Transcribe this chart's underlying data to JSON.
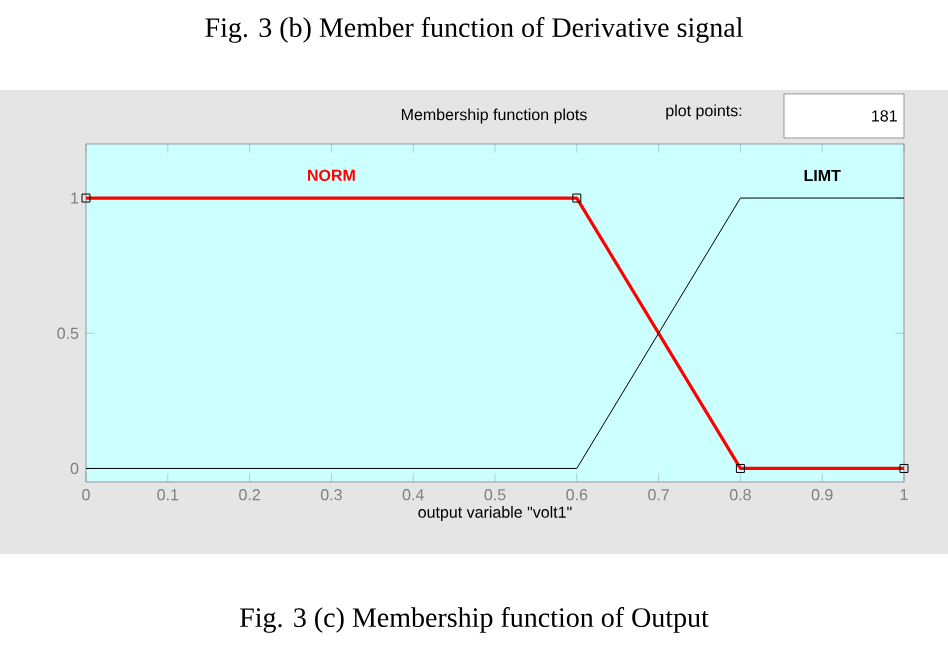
{
  "chart_data": {
    "type": "line",
    "title": "Fig. 3 (c) Membership function of Output",
    "annotations": [
      "Fig. 3 (b) Member function of Derivative signal",
      "Membership function plots",
      "plot points:",
      "181"
    ],
    "xlabel": "output variable \"volt1\"",
    "xlim": [
      0,
      1
    ],
    "ylim": [
      -0.05,
      1.2
    ],
    "xticks": [
      0,
      0.1,
      0.2,
      0.3,
      0.4,
      0.5,
      0.6,
      0.7,
      0.8,
      0.9,
      1
    ],
    "yticks": [
      0,
      0.5,
      1
    ],
    "series": [
      {
        "name": "NORM",
        "color": "#ff0000",
        "x": [
          0,
          0.6,
          0.8,
          1
        ],
        "values": [
          1,
          1,
          0,
          0
        ],
        "marker": "square"
      },
      {
        "name": "LIMT",
        "color": "#000000",
        "x": [
          0,
          0.6,
          0.8,
          1
        ],
        "values": [
          0,
          0,
          1,
          1
        ]
      }
    ]
  }
}
